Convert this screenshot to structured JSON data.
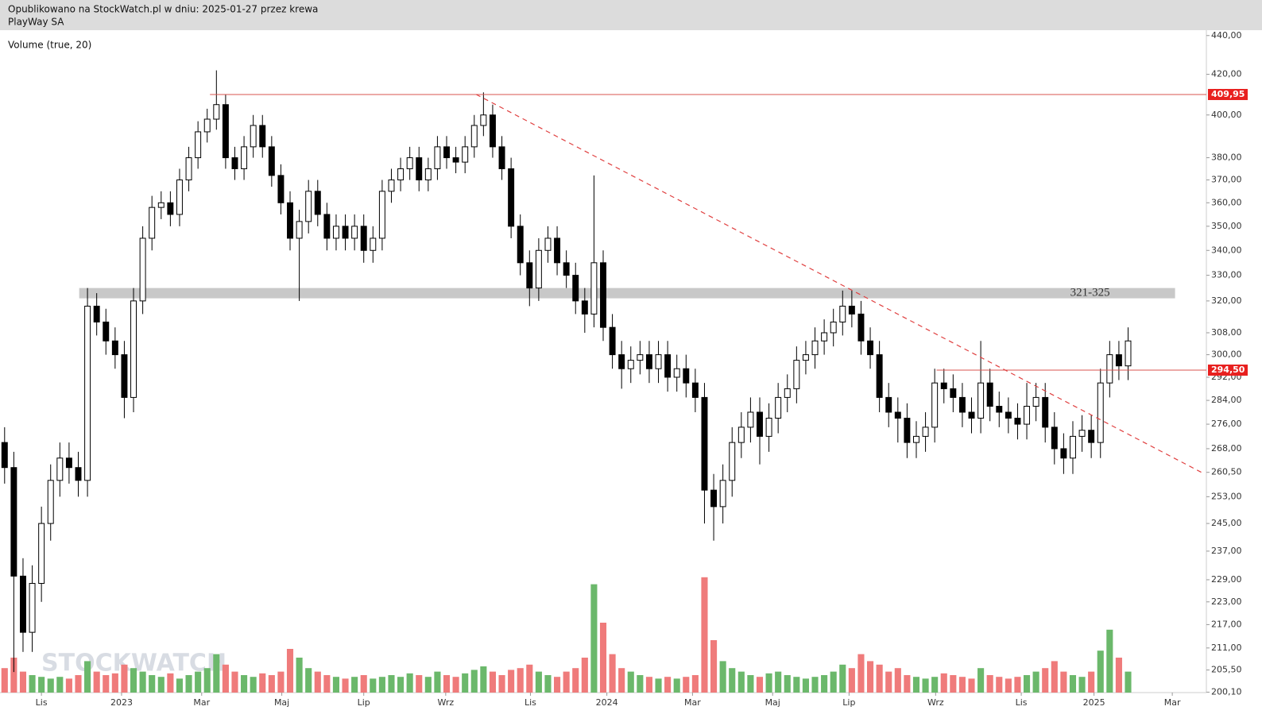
{
  "header": {
    "published": "Opublikowano na StockWatch.pl w dniu: 2025-01-27 przez krewa",
    "name": "PlayWay SA"
  },
  "watermark": "STOCKWATCH",
  "chart_data": {
    "type": "candlestick",
    "indicator_label": "Volume (true, 20)",
    "log_scale": true,
    "categories": [
      null,
      null,
      null,
      null,
      null,
      null,
      null,
      null,
      null,
      null,
      null,
      null,
      null,
      null,
      null,
      null,
      null,
      null,
      null,
      null,
      null,
      null,
      null,
      null,
      null,
      null,
      null,
      null,
      null,
      null,
      null,
      null,
      null,
      null,
      null,
      null,
      null,
      null,
      null,
      null,
      null,
      null,
      null,
      null,
      null,
      null,
      null,
      null,
      null,
      null,
      null,
      null,
      null,
      null,
      null,
      null,
      null,
      null,
      null,
      null,
      null,
      null,
      null,
      null,
      null,
      null,
      null,
      null,
      null,
      null,
      null,
      null,
      null,
      null,
      null,
      null,
      null,
      null,
      null,
      null,
      null,
      null,
      null,
      null,
      null,
      null,
      null,
      null,
      null,
      null,
      null,
      null,
      null,
      null,
      null,
      null,
      null,
      null,
      null,
      null,
      null,
      null,
      null,
      null,
      null,
      null,
      null,
      null,
      null,
      null,
      null,
      null,
      null,
      null,
      null,
      null,
      null,
      null,
      null,
      null,
      null,
      null,
      null
    ],
    "open": [
      270,
      262,
      230,
      215,
      228,
      245,
      258,
      265,
      262,
      258,
      318,
      312,
      305,
      300,
      285,
      320,
      345,
      358,
      360,
      355,
      370,
      380,
      392,
      398,
      405,
      380,
      375,
      385,
      395,
      385,
      372,
      360,
      345,
      352,
      365,
      355,
      345,
      350,
      345,
      350,
      340,
      345,
      365,
      370,
      375,
      380,
      370,
      375,
      385,
      380,
      378,
      385,
      395,
      400,
      385,
      375,
      350,
      335,
      325,
      340,
      345,
      335,
      330,
      320,
      315,
      335,
      310,
      300,
      295,
      298,
      300,
      295,
      300,
      292,
      295,
      290,
      285,
      255,
      250,
      258,
      270,
      275,
      280,
      272,
      278,
      285,
      288,
      298,
      300,
      305,
      308,
      312,
      318,
      315,
      305,
      300,
      285,
      280,
      278,
      270,
      272,
      275,
      290,
      288,
      285,
      280,
      278,
      290,
      282,
      280,
      278,
      276,
      282,
      285,
      275,
      268,
      265,
      272,
      274,
      270,
      290,
      300,
      296
    ],
    "high": [
      275,
      267,
      235,
      233,
      250,
      263,
      270,
      270,
      267,
      325,
      323,
      317,
      310,
      305,
      325,
      350,
      363,
      365,
      365,
      375,
      385,
      397,
      403,
      422,
      410,
      385,
      390,
      400,
      400,
      390,
      377,
      365,
      357,
      370,
      370,
      360,
      355,
      355,
      355,
      355,
      350,
      370,
      375,
      380,
      385,
      385,
      380,
      390,
      390,
      385,
      390,
      400,
      411,
      405,
      390,
      380,
      355,
      340,
      345,
      350,
      350,
      340,
      335,
      325,
      372,
      340,
      315,
      305,
      303,
      305,
      305,
      305,
      305,
      300,
      300,
      295,
      290,
      260,
      263,
      275,
      280,
      285,
      285,
      283,
      290,
      293,
      303,
      305,
      310,
      313,
      317,
      324,
      324,
      320,
      310,
      305,
      290,
      285,
      283,
      277,
      280,
      295,
      295,
      293,
      290,
      285,
      305,
      295,
      287,
      285,
      283,
      290,
      290,
      290,
      280,
      273,
      277,
      279,
      279,
      295,
      305,
      305,
      310
    ],
    "low": [
      257,
      205,
      210,
      210,
      223,
      240,
      253,
      257,
      253,
      253,
      307,
      300,
      295,
      278,
      280,
      315,
      340,
      353,
      350,
      350,
      365,
      375,
      387,
      393,
      375,
      370,
      370,
      380,
      380,
      367,
      355,
      340,
      320,
      347,
      350,
      340,
      340,
      340,
      340,
      335,
      335,
      340,
      360,
      365,
      370,
      365,
      365,
      370,
      375,
      373,
      373,
      380,
      390,
      380,
      370,
      345,
      330,
      318,
      320,
      335,
      330,
      325,
      315,
      308,
      310,
      305,
      295,
      288,
      290,
      293,
      290,
      290,
      287,
      287,
      285,
      280,
      245,
      240,
      245,
      253,
      265,
      270,
      263,
      267,
      273,
      280,
      283,
      293,
      295,
      300,
      303,
      307,
      310,
      300,
      295,
      280,
      275,
      270,
      265,
      265,
      267,
      270,
      283,
      280,
      275,
      273,
      273,
      277,
      275,
      273,
      271,
      271,
      277,
      270,
      263,
      260,
      260,
      267,
      265,
      265,
      285,
      291,
      291
    ],
    "close": [
      262,
      230,
      215,
      228,
      245,
      258,
      265,
      262,
      258,
      318,
      312,
      305,
      300,
      285,
      320,
      345,
      358,
      360,
      355,
      370,
      380,
      392,
      398,
      405,
      380,
      375,
      385,
      395,
      385,
      372,
      360,
      345,
      352,
      365,
      355,
      345,
      350,
      345,
      350,
      340,
      345,
      365,
      370,
      375,
      380,
      370,
      375,
      385,
      380,
      378,
      385,
      395,
      400,
      385,
      375,
      350,
      335,
      325,
      340,
      345,
      335,
      330,
      320,
      315,
      335,
      310,
      300,
      295,
      298,
      300,
      295,
      300,
      292,
      295,
      290,
      285,
      255,
      250,
      258,
      270,
      275,
      280,
      272,
      278,
      285,
      288,
      298,
      300,
      305,
      308,
      312,
      318,
      315,
      305,
      300,
      285,
      280,
      278,
      270,
      272,
      275,
      290,
      288,
      285,
      280,
      278,
      290,
      282,
      280,
      278,
      276,
      282,
      285,
      275,
      268,
      265,
      272,
      274,
      270,
      290,
      300,
      296,
      305
    ],
    "volume": [
      14,
      20,
      12,
      10,
      9,
      8,
      9,
      8,
      10,
      18,
      12,
      10,
      11,
      16,
      14,
      12,
      10,
      9,
      11,
      8,
      10,
      12,
      14,
      22,
      16,
      12,
      10,
      9,
      11,
      10,
      12,
      25,
      20,
      14,
      12,
      10,
      9,
      8,
      9,
      10,
      8,
      9,
      10,
      9,
      11,
      10,
      9,
      12,
      10,
      9,
      11,
      13,
      15,
      12,
      10,
      13,
      14,
      16,
      12,
      10,
      9,
      12,
      14,
      20,
      62,
      40,
      22,
      14,
      12,
      10,
      9,
      8,
      9,
      8,
      9,
      10,
      66,
      30,
      18,
      14,
      12,
      10,
      9,
      11,
      12,
      10,
      9,
      8,
      9,
      10,
      12,
      16,
      14,
      22,
      18,
      16,
      12,
      14,
      10,
      9,
      8,
      9,
      11,
      10,
      9,
      8,
      14,
      10,
      9,
      8,
      9,
      10,
      12,
      14,
      18,
      12,
      10,
      9,
      12,
      24,
      36,
      20,
      12
    ],
    "up_color": "#6bb86b",
    "down_color": "#ef7b7b",
    "xlim": [
      0,
      131
    ],
    "ylim": [
      200,
      442
    ],
    "xticks": [
      {
        "value": 4.5,
        "label": "Lis"
      },
      {
        "value": 13.2,
        "label": "2023"
      },
      {
        "value": 21.9,
        "label": "Mar"
      },
      {
        "value": 30.6,
        "label": "Maj"
      },
      {
        "value": 39.5,
        "label": "Lip"
      },
      {
        "value": 48.4,
        "label": "Wrz"
      },
      {
        "value": 57.6,
        "label": "Lis"
      },
      {
        "value": 65.9,
        "label": "2024"
      },
      {
        "value": 75.2,
        "label": "Mar"
      },
      {
        "value": 83.9,
        "label": "Maj"
      },
      {
        "value": 92.2,
        "label": "Lip"
      },
      {
        "value": 101.6,
        "label": "Wrz"
      },
      {
        "value": 110.9,
        "label": "Lis"
      },
      {
        "value": 118.8,
        "label": "2025"
      },
      {
        "value": 127.3,
        "label": "Mar"
      }
    ],
    "yticks": [
      {
        "value": 440,
        "label": "440,00"
      },
      {
        "value": 420,
        "label": "420,00"
      },
      {
        "value": 400,
        "label": "400,00"
      },
      {
        "value": 380,
        "label": "380,00"
      },
      {
        "value": 370,
        "label": "370,00"
      },
      {
        "value": 360,
        "label": "360,00"
      },
      {
        "value": 350,
        "label": "350,00"
      },
      {
        "value": 340,
        "label": "340,00"
      },
      {
        "value": 330,
        "label": "330,00"
      },
      {
        "value": 320,
        "label": "320,00"
      },
      {
        "value": 308,
        "label": "308,00"
      },
      {
        "value": 300,
        "label": "300,00"
      },
      {
        "value": 292,
        "label": "292,00"
      },
      {
        "value": 284,
        "label": "284,00"
      },
      {
        "value": 276,
        "label": "276,00"
      },
      {
        "value": 268,
        "label": "268,00"
      },
      {
        "value": 260.5,
        "label": "260,50"
      },
      {
        "value": 253,
        "label": "253,00"
      },
      {
        "value": 245,
        "label": "245,00"
      },
      {
        "value": 237,
        "label": "237,00"
      },
      {
        "value": 229,
        "label": "229,00"
      },
      {
        "value": 223,
        "label": "223,00"
      },
      {
        "value": 217,
        "label": "217,00"
      },
      {
        "value": 211,
        "label": "211,00"
      },
      {
        "value": 205.5,
        "label": "205,50"
      },
      {
        "value": 200.1,
        "label": "200,10"
      }
    ],
    "levels": [
      {
        "value": 409.95,
        "label": "409,95",
        "from": 22.8,
        "color": "#d9534f"
      },
      {
        "value": 294.5,
        "label": "294,50",
        "from": 101.7,
        "color": "#d9534f"
      }
    ],
    "zone": {
      "from": 321,
      "to": 325,
      "label": "321-325",
      "x": [
        8.6,
        127.6
      ],
      "color": "#c8c8c8"
    },
    "trendline": {
      "x": [
        51.7,
        130.8
      ],
      "y": [
        410,
        260
      ],
      "color": "#e04040"
    }
  }
}
